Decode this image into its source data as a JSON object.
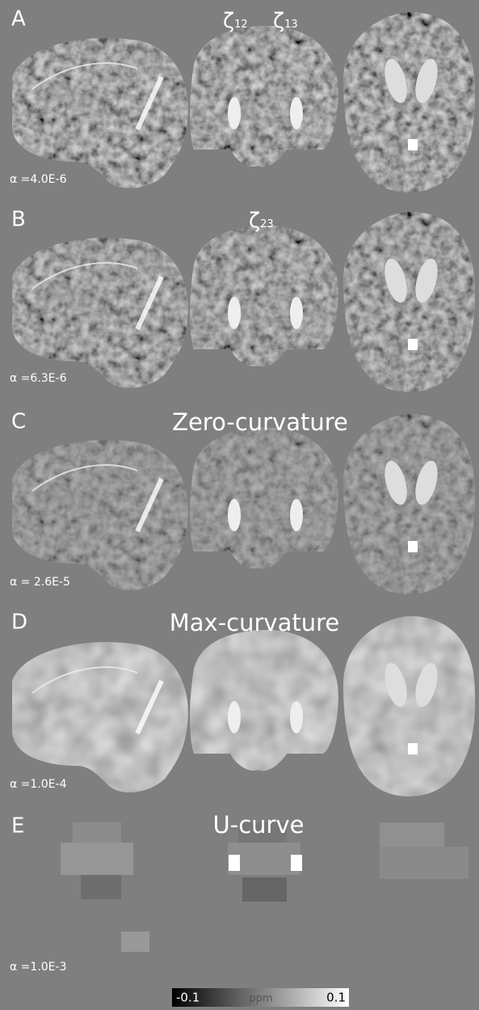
{
  "panels": [
    {
      "label": "A",
      "alpha": "α =4.0E-6",
      "annotations": [
        {
          "symbol": "ζ",
          "subscript": "12"
        },
        {
          "symbol": "ζ",
          "subscript": "13"
        }
      ]
    },
    {
      "label": "B",
      "alpha": "α =6.3E-6",
      "annotations": [
        {
          "symbol": "ζ",
          "subscript": "23"
        }
      ]
    },
    {
      "label": "C",
      "title": "Zero-curvature",
      "alpha": "α = 2.6E-5"
    },
    {
      "label": "D",
      "title": "Max-curvature",
      "alpha": "α =1.0E-4"
    },
    {
      "label": "E",
      "title": "U-curve",
      "alpha": "α =1.0E-3"
    }
  ],
  "colorbar": {
    "min_label": "-0.1",
    "unit": "ppm",
    "max_label": "0.1"
  }
}
